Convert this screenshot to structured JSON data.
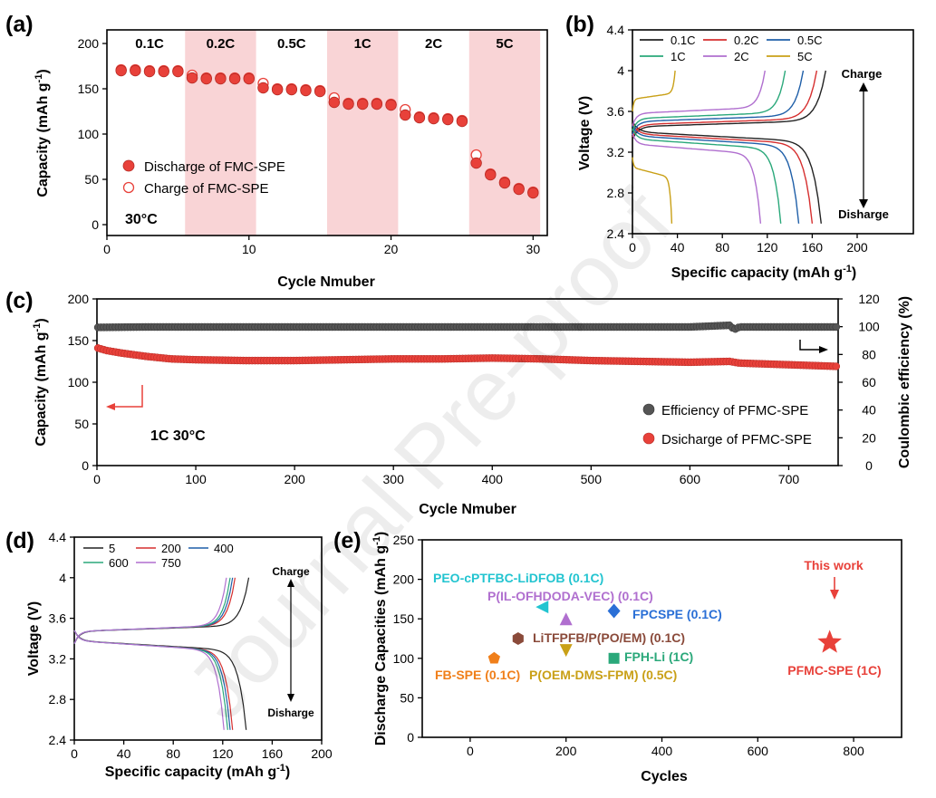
{
  "panel_labels": [
    "(a)",
    "(b)",
    "(c)",
    "(d)",
    "(e)"
  ],
  "watermark": "Journal Pre-proof",
  "colors": {
    "red_marker": "#e8413a",
    "dark_marker": "#555555",
    "pink_band": "#f9d4d6",
    "axis": "#000000"
  },
  "chart_data": [
    {
      "panel": "(a)",
      "type": "scatter",
      "xlabel": "Cycle Nmuber",
      "ylabel": "Capacity (mAh g⁻¹)",
      "xlim": [
        0,
        31
      ],
      "ylim": [
        -12,
        215
      ],
      "xticks": [
        0,
        10,
        20,
        30
      ],
      "yticks": [
        0,
        50,
        100,
        150,
        200
      ],
      "rate_bands": [
        {
          "label": "0.1C",
          "from": 0.5,
          "to": 5.5,
          "shaded": false
        },
        {
          "label": "0.2C",
          "from": 5.5,
          "to": 10.5,
          "shaded": true
        },
        {
          "label": "0.5C",
          "from": 10.5,
          "to": 15.5,
          "shaded": false
        },
        {
          "label": "1C",
          "from": 15.5,
          "to": 20.5,
          "shaded": true
        },
        {
          "label": "2C",
          "from": 20.5,
          "to": 25.5,
          "shaded": false
        },
        {
          "label": "5C",
          "from": 25.5,
          "to": 30.5,
          "shaded": true
        }
      ],
      "annotation": "30°C",
      "series": [
        {
          "name": "Discharge of FMC-SPE",
          "style": "filled",
          "x": [
            1,
            2,
            3,
            4,
            5,
            6,
            7,
            8,
            9,
            10,
            11,
            12,
            13,
            14,
            15,
            16,
            17,
            18,
            19,
            20,
            21,
            22,
            23,
            24,
            25,
            26,
            27,
            28,
            29,
            30
          ],
          "y": [
            170,
            170,
            169,
            169,
            169,
            162,
            161,
            161,
            161,
            161,
            151,
            149,
            149,
            148,
            147,
            135,
            133,
            133,
            133,
            132,
            121,
            118,
            117,
            116,
            114,
            68,
            55,
            46,
            39,
            35
          ]
        },
        {
          "name": "Charge of FMC-SPE",
          "style": "open",
          "x": [
            1,
            2,
            3,
            4,
            5,
            6,
            7,
            8,
            9,
            10,
            11,
            12,
            13,
            14,
            15,
            16,
            17,
            18,
            19,
            20,
            21,
            22,
            23,
            24,
            25,
            26,
            27,
            28,
            29,
            30
          ],
          "y": [
            171,
            171,
            170,
            170,
            170,
            165,
            162,
            162,
            162,
            162,
            156,
            150,
            150,
            149,
            148,
            140,
            134,
            134,
            134,
            133,
            127,
            119,
            118,
            117,
            115,
            77,
            56,
            47,
            40,
            36
          ]
        }
      ]
    },
    {
      "panel": "(b)",
      "type": "line",
      "xlabel": "Specific capacity (mAh g⁻¹)",
      "ylabel": "Voltage (V)",
      "xlim": [
        0,
        250
      ],
      "ylim": [
        2.4,
        4.4
      ],
      "xticks": [
        0,
        40,
        80,
        120,
        160,
        200
      ],
      "yticks": [
        2.4,
        2.8,
        3.2,
        3.6,
        4.0,
        4.4
      ],
      "ytick_labels": [
        "2.4",
        "2.8",
        "3.2",
        "3.6",
        "4",
        "4.4"
      ],
      "arrow_labels": [
        "Charge",
        "Disharge"
      ],
      "series": [
        {
          "name": "0.1C",
          "color": "#222222",
          "charge_capacity": 172,
          "discharge_capacity": 168,
          "charge_plateau": 3.45,
          "discharge_plateau": 3.4
        },
        {
          "name": "0.2C",
          "color": "#d62f2f",
          "charge_capacity": 164,
          "discharge_capacity": 160,
          "charge_plateau": 3.47,
          "discharge_plateau": 3.38
        },
        {
          "name": "0.5C",
          "color": "#1f5fa8",
          "charge_capacity": 152,
          "discharge_capacity": 148,
          "charge_plateau": 3.5,
          "discharge_plateau": 3.36
        },
        {
          "name": "1C",
          "color": "#2aa87a",
          "charge_capacity": 136,
          "discharge_capacity": 132,
          "charge_plateau": 3.53,
          "discharge_plateau": 3.33
        },
        {
          "name": "2C",
          "color": "#b06fcf",
          "charge_capacity": 118,
          "discharge_capacity": 114,
          "charge_plateau": 3.58,
          "discharge_plateau": 3.28
        },
        {
          "name": "5C",
          "color": "#c9a017",
          "charge_capacity": 38,
          "discharge_capacity": 35,
          "charge_plateau": 3.72,
          "discharge_plateau": 3.05
        }
      ]
    },
    {
      "panel": "(c)",
      "type": "scatter",
      "xlabel": "Cycle Nmuber",
      "ylabel": "Capacity (mAh g⁻¹)",
      "y2label": "Coulombic efficiency (%)",
      "xlim": [
        0,
        750
      ],
      "ylim": [
        0,
        200
      ],
      "y2lim": [
        0,
        120
      ],
      "xticks": [
        0,
        100,
        200,
        300,
        400,
        500,
        600,
        700
      ],
      "yticks": [
        0,
        50,
        100,
        150,
        200
      ],
      "y2ticks": [
        0,
        20,
        40,
        60,
        80,
        100,
        120
      ],
      "annotation": "1C 30°C",
      "series": [
        {
          "name": "Efficiency of PFMC-SPE",
          "axis": "right",
          "color": "#555555",
          "x": [
            1,
            50,
            100,
            150,
            200,
            250,
            300,
            350,
            400,
            450,
            500,
            550,
            600,
            640,
            645,
            650,
            700,
            750
          ],
          "y": [
            99.5,
            99.8,
            99.8,
            99.8,
            99.8,
            99.8,
            99.8,
            99.8,
            99.8,
            99.8,
            99.8,
            99.8,
            99.8,
            101,
            98,
            99.8,
            99.8,
            99.8
          ]
        },
        {
          "name": "Dsicharge of PFMC-SPE",
          "axis": "left",
          "color": "#e8413a",
          "x": [
            1,
            10,
            25,
            50,
            75,
            100,
            150,
            200,
            250,
            300,
            350,
            400,
            450,
            500,
            550,
            600,
            640,
            650,
            700,
            750
          ],
          "y": [
            141,
            138,
            135,
            131,
            128,
            127,
            126,
            126,
            127,
            128,
            128,
            129,
            128,
            126,
            125,
            124,
            125,
            123,
            121,
            119
          ]
        }
      ]
    },
    {
      "panel": "(d)",
      "type": "line",
      "xlabel": "Specific capacity (mAh g⁻¹)",
      "ylabel": "Voltage (V)",
      "xlim": [
        0,
        200
      ],
      "ylim": [
        2.4,
        4.4
      ],
      "xticks": [
        0,
        40,
        80,
        120,
        160,
        200
      ],
      "yticks": [
        2.4,
        2.8,
        3.2,
        3.6,
        4.0,
        4.4
      ],
      "ytick_labels": [
        "2.4",
        "2.8",
        "3.2",
        "3.6",
        "4",
        "4.4"
      ],
      "arrow_labels": [
        "Charge",
        "Disharge"
      ],
      "series": [
        {
          "name": "5",
          "color": "#222222",
          "charge_capacity": 141,
          "discharge_capacity": 139
        },
        {
          "name": "200",
          "color": "#d62f2f",
          "charge_capacity": 130,
          "discharge_capacity": 128
        },
        {
          "name": "400",
          "color": "#1f5fa8",
          "charge_capacity": 128,
          "discharge_capacity": 126
        },
        {
          "name": "600",
          "color": "#2aa87a",
          "charge_capacity": 126,
          "discharge_capacity": 124
        },
        {
          "name": "750",
          "color": "#b06fcf",
          "charge_capacity": 123,
          "discharge_capacity": 121
        }
      ]
    },
    {
      "panel": "(e)",
      "type": "scatter",
      "xlabel": "Cycles",
      "ylabel": "Discharge Capacities (mAh g⁻¹)",
      "xlim": [
        -100,
        900
      ],
      "ylim": [
        0,
        250
      ],
      "xticks": [
        0,
        200,
        400,
        600,
        800
      ],
      "yticks": [
        0,
        50,
        100,
        150,
        200,
        250
      ],
      "points": [
        {
          "label": "PEO-cPTFBC-LiDFOB (0.1C)",
          "x": 150,
          "y": 165,
          "marker": "triangle-left",
          "color": "#22c4d0"
        },
        {
          "label": "P(IL-OFHDODA-VEC) (0.1C)",
          "x": 200,
          "y": 150,
          "marker": "triangle-up",
          "color": "#b06fcf"
        },
        {
          "label": "FPCSPE (0.1C)",
          "x": 300,
          "y": 160,
          "marker": "diamond",
          "color": "#2a6fd6"
        },
        {
          "label": "LiTFPFB/P(PO/EM) (0.1C)",
          "x": 100,
          "y": 125,
          "marker": "hexagon",
          "color": "#8a4a3a"
        },
        {
          "label": "FPH-Li (1C)",
          "x": 300,
          "y": 100,
          "marker": "square",
          "color": "#2aa87a"
        },
        {
          "label": "P(OEM-DMS-FPM) (0.5C)",
          "x": 200,
          "y": 110,
          "marker": "triangle-down",
          "color": "#c9a017"
        },
        {
          "label": "FB-SPE (0.1C)",
          "x": 50,
          "y": 100,
          "marker": "pentagon",
          "color": "#f07f1a"
        },
        {
          "label": "PFMC-SPE (1C)",
          "x": 750,
          "y": 120,
          "marker": "star",
          "color": "#e8413a"
        }
      ],
      "annotation": "This work"
    }
  ]
}
